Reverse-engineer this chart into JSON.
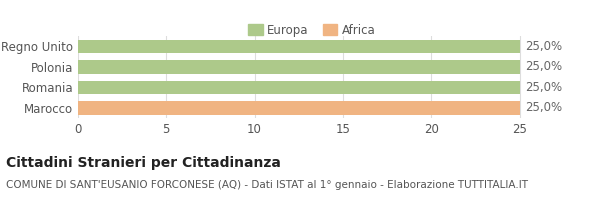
{
  "categories": [
    "Marocco",
    "Romania",
    "Polonia",
    "Regno Unito"
  ],
  "values": [
    25,
    25,
    25,
    25
  ],
  "bar_colors": [
    "#f0b482",
    "#adc98a",
    "#adc98a",
    "#adc98a"
  ],
  "bar_labels": [
    "25,0%",
    "25,0%",
    "25,0%",
    "25,0%"
  ],
  "legend_labels": [
    "Europa",
    "Africa"
  ],
  "legend_colors": [
    "#adc98a",
    "#f0b482"
  ],
  "xlim": [
    0,
    25
  ],
  "xticks": [
    0,
    5,
    10,
    15,
    20,
    25
  ],
  "title": "Cittadini Stranieri per Cittadinanza",
  "subtitle": "COMUNE DI SANT'EUSANIO FORCONESE (AQ) - Dati ISTAT al 1° gennaio - Elaborazione TUTTITALIA.IT",
  "title_fontsize": 10,
  "subtitle_fontsize": 7.5,
  "label_fontsize": 8.5,
  "tick_fontsize": 8.5,
  "background_color": "#ffffff",
  "grid_color": "#dddddd"
}
